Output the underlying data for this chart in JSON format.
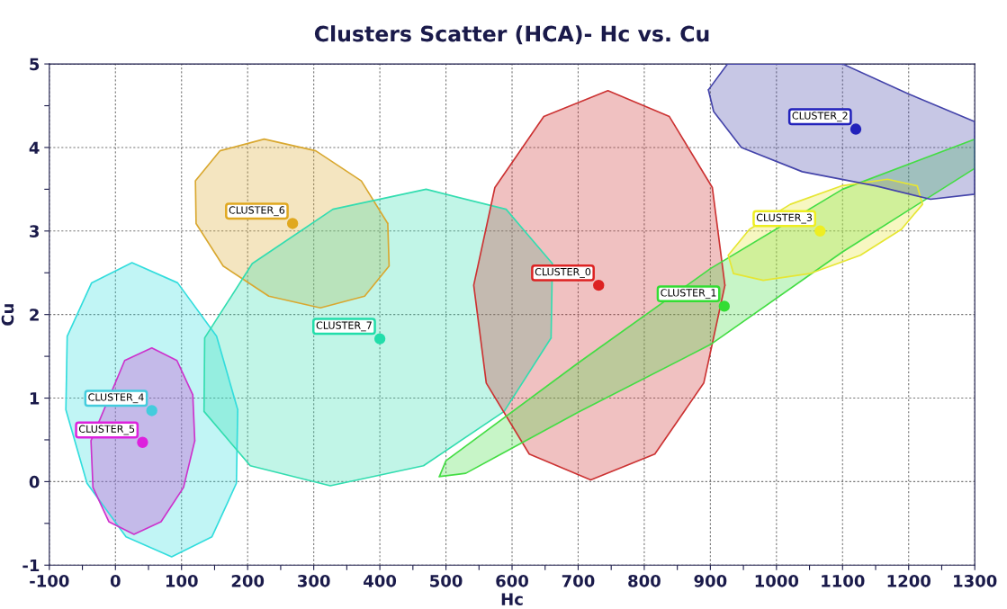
{
  "chart_data": {
    "type": "scatter",
    "title": "Clusters Scatter (HCA)- Hc vs. Cu",
    "xlabel": "Hc",
    "ylabel": "Cu",
    "xlim": [
      -100,
      1300
    ],
    "ylim": [
      -1,
      5
    ],
    "xticks": [
      -100,
      {
        "value": -50,
        "label": null
      },
      0,
      {
        "value": 50,
        "label": null
      },
      100,
      {
        "value": 150,
        "label": null
      },
      200,
      {
        "value": 250,
        "label": null
      },
      300,
      {
        "value": 350,
        "label": null
      },
      400,
      {
        "value": 450,
        "label": null
      },
      500,
      {
        "value": 550,
        "label": null
      },
      600,
      {
        "value": 650,
        "label": null
      },
      700,
      {
        "value": 750,
        "label": null
      },
      800,
      {
        "value": 850,
        "label": null
      },
      900,
      {
        "value": 950,
        "label": null
      },
      1000,
      {
        "value": 1050,
        "label": null
      },
      1100,
      {
        "value": 1150,
        "label": null
      },
      1200,
      {
        "value": 1250,
        "label": null
      },
      1300
    ],
    "yticks": [
      -1,
      {
        "value": -0.5,
        "label": null
      },
      0,
      {
        "value": 0.5,
        "label": null
      },
      1,
      {
        "value": 1.5,
        "label": null
      },
      2,
      {
        "value": 2.5,
        "label": null
      },
      3,
      {
        "value": 3.5,
        "label": null
      },
      4,
      {
        "value": 4.5,
        "label": null
      },
      5
    ],
    "grid": true,
    "legend": false,
    "marker": "circle",
    "series": [
      {
        "type": "area",
        "marker": "none",
        "color": "#33dddd",
        "x": [
          185,
          153,
          94,
          25,
          -36,
          -73,
          -75,
          -43,
          16,
          85,
          146,
          183
        ],
        "values": [
          0.86,
          1.74,
          2.38,
          2.62,
          2.38,
          1.74,
          0.86,
          -0.02,
          -0.66,
          -0.9,
          -0.66,
          -0.02
        ]
      },
      {
        "type": "area",
        "marker": "none",
        "color": "#cc33cc",
        "x": [
          120,
          117,
          93,
          55,
          14,
          -37,
          -34,
          -10,
          28,
          69,
          103
        ],
        "values": [
          0.49,
          1.04,
          1.45,
          1.6,
          1.45,
          0.49,
          -0.07,
          -0.48,
          -0.63,
          -0.48,
          -0.07
        ]
      },
      {
        "type": "area",
        "marker": "none",
        "color": "#d9a830",
        "x": [
          412,
          372,
          303,
          225,
          158,
          121,
          122,
          163,
          232,
          310,
          377,
          414
        ],
        "values": [
          3.09,
          3.6,
          3.96,
          4.1,
          3.96,
          3.6,
          3.09,
          2.58,
          2.22,
          2.08,
          2.22,
          2.58
        ]
      },
      {
        "type": "area",
        "marker": "none",
        "color": "#33ddb0",
        "x": [
          659,
          661,
          591,
          470,
          329,
          207,
          135,
          134,
          204,
          325,
          466,
          588
        ],
        "values": [
          1.72,
          2.61,
          3.26,
          3.5,
          3.26,
          2.61,
          1.72,
          0.84,
          0.19,
          -0.05,
          0.19,
          0.84
        ]
      },
      {
        "type": "area",
        "marker": "none",
        "color": "#cc3333",
        "x": [
          922,
          903,
          838,
          745,
          648,
          574,
          542,
          561,
          626,
          719,
          816,
          890
        ],
        "values": [
          2.35,
          3.52,
          4.37,
          4.68,
          4.37,
          3.52,
          2.35,
          1.18,
          0.33,
          0.02,
          0.33,
          1.18
        ]
      },
      {
        "type": "area",
        "marker": "none",
        "color": "#44dd44",
        "x": [
          490,
          500,
          700,
          900,
          1100,
          1300,
          1300,
          1100,
          900,
          700,
          530
        ],
        "values": [
          0.06,
          0.25,
          1.42,
          2.55,
          3.5,
          4.1,
          3.75,
          2.75,
          1.64,
          0.83,
          0.1
        ]
      },
      {
        "type": "area",
        "marker": "none",
        "color": "#e6e633",
        "x": [
          1189,
          1221,
          1213,
          1168,
          1098,
          1021,
          959,
          927,
          935,
          980,
          1050,
          1127
        ],
        "values": [
          3.02,
          3.32,
          3.54,
          3.62,
          3.54,
          3.32,
          3.02,
          2.71,
          2.49,
          2.41,
          2.49,
          2.71
        ]
      },
      {
        "type": "area",
        "marker": "none",
        "color": "#4444aa",
        "x": [
          897,
          926,
          1100,
          1200,
          1300,
          1300,
          1233,
          1150,
          1039,
          947,
          905
        ],
        "values": [
          4.69,
          5.0,
          5.0,
          4.64,
          4.31,
          3.44,
          3.38,
          3.54,
          3.71,
          4.0,
          4.43
        ]
      },
      {
        "name": "CLUSTER_0",
        "color": "#dd2222",
        "x": [
          731
        ],
        "values": [
          2.35
        ]
      },
      {
        "name": "CLUSTER_1",
        "color": "#33dd33",
        "x": [
          921
        ],
        "values": [
          2.1
        ]
      },
      {
        "name": "CLUSTER_2",
        "color": "#2222bb",
        "x": [
          1120
        ],
        "values": [
          4.22
        ]
      },
      {
        "name": "CLUSTER_3",
        "color": "#eeee22",
        "x": [
          1066
        ],
        "values": [
          3.0
        ]
      },
      {
        "name": "CLUSTER_4",
        "color": "#44ccdd",
        "x": [
          55
        ],
        "values": [
          0.85
        ]
      },
      {
        "name": "CLUSTER_5",
        "color": "#dd22dd",
        "x": [
          41
        ],
        "values": [
          0.47
        ]
      },
      {
        "name": "CLUSTER_6",
        "color": "#e0a820",
        "x": [
          268
        ],
        "values": [
          3.09
        ]
      },
      {
        "name": "CLUSTER_7",
        "color": "#22ddaa",
        "x": [
          400
        ],
        "values": [
          1.71
        ]
      }
    ]
  }
}
